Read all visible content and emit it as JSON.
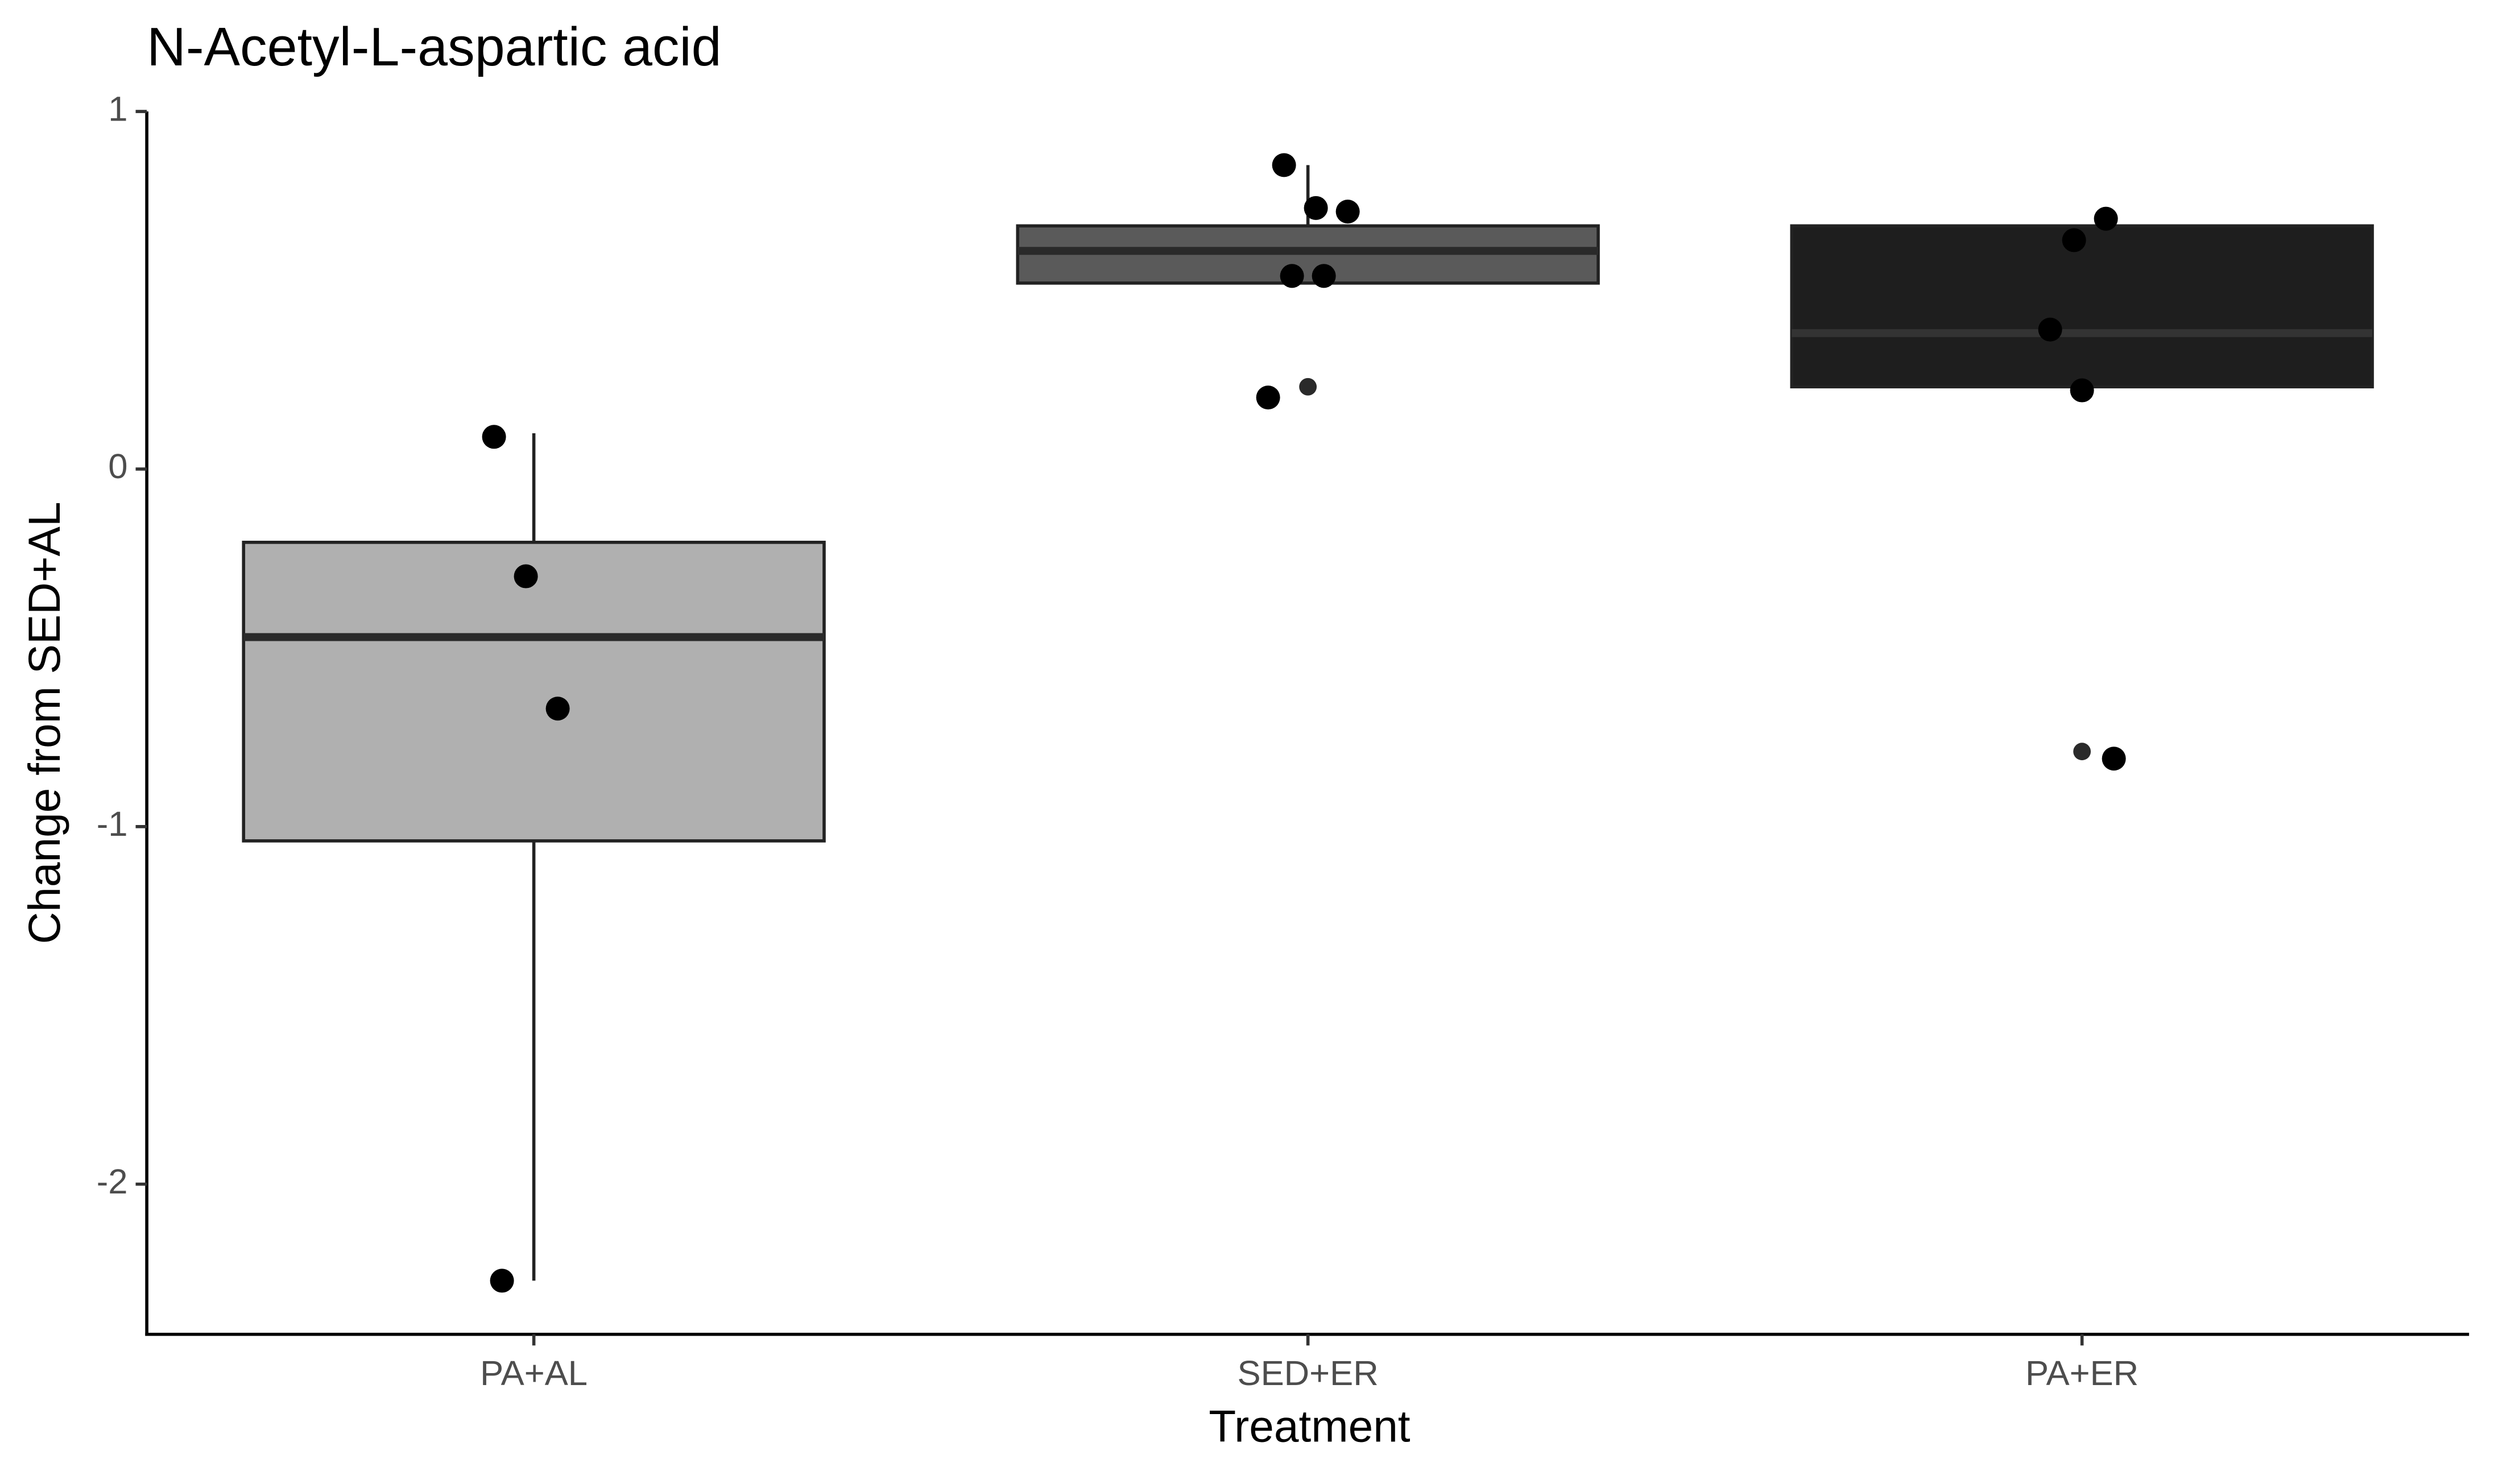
{
  "chart_data": {
    "type": "boxplot",
    "title": "N-Acetyl-L-aspartic acid",
    "x_label": "Treatment",
    "y_label": "Change from SED+AL",
    "categories": [
      "PA+AL",
      "SED+ER",
      "PA+ER"
    ],
    "colors": [
      "#b0b0b0",
      "#5a5a5a",
      "#1e1e1e"
    ],
    "boxes": [
      {
        "whisker_low": -2.27,
        "q1": -1.04,
        "median": -0.47,
        "q3": -0.205,
        "whisker_high": 0.1,
        "outliers": [],
        "points": [
          0.09,
          -0.3,
          -0.67,
          -2.27
        ]
      },
      {
        "whisker_low": 0.52,
        "q1": 0.52,
        "median": 0.61,
        "q3": 0.68,
        "whisker_high": 0.85,
        "outliers": [
          0.23
        ],
        "points": [
          0.85,
          0.73,
          0.72,
          0.54,
          0.54,
          0.2
        ]
      },
      {
        "whisker_low": 0.23,
        "q1": 0.23,
        "median": 0.38,
        "q3": 0.68,
        "whisker_high": 0.68,
        "outliers": [
          -0.79
        ],
        "points": [
          0.64,
          0.7,
          0.39,
          0.22,
          -0.81
        ]
      }
    ],
    "ylim": [
      -2.42,
      1
    ],
    "yticks": [
      1,
      0,
      -1,
      -2
    ],
    "grid": false
  }
}
